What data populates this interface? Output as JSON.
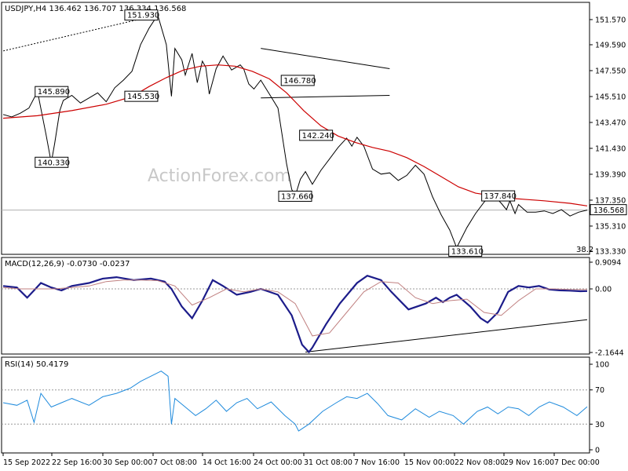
{
  "watermark": "ActionForex.com",
  "chart_data": [
    {
      "type": "line",
      "panel": "price",
      "title": "USDJPY,H4  136.462 136.707 136.334 136.568",
      "ylim": [
        133.33,
        152.0
      ],
      "yticks": [
        "151.570",
        "149.590",
        "147.550",
        "145.510",
        "143.470",
        "141.430",
        "139.390",
        "137.350",
        "135.310",
        "133.330"
      ],
      "last_price_label": "136.568",
      "corner_text": "38.2",
      "series": [
        {
          "color": "#000000",
          "x": [
            0,
            5,
            10,
            15,
            20,
            25,
            28,
            30,
            33,
            35,
            40,
            45,
            50,
            55,
            60,
            65,
            70,
            75,
            80,
            85,
            90,
            95,
            98,
            100,
            104,
            106,
            110,
            113,
            116,
            118,
            120,
            124,
            128,
            133,
            138,
            140,
            143,
            146,
            150,
            155,
            160,
            165,
            168,
            170,
            173,
            176,
            180,
            185,
            190,
            195,
            200,
            203,
            206,
            210,
            215,
            220,
            225,
            230,
            235,
            240,
            245,
            250,
            255,
            260,
            264,
            270,
            275,
            280,
            285,
            290,
            293,
            295,
            298,
            300,
            305,
            310,
            315,
            320,
            325,
            330,
            335,
            340
          ],
          "y": [
            144.1,
            143.9,
            144.2,
            144.6,
            145.9,
            142.5,
            140.3,
            141.8,
            144.4,
            145.2,
            145.6,
            145.0,
            145.4,
            145.8,
            145.1,
            146.2,
            146.8,
            147.5,
            149.6,
            150.9,
            151.93,
            149.6,
            145.53,
            149.3,
            148.4,
            147.2,
            148.9,
            146.6,
            148.3,
            147.8,
            145.7,
            147.7,
            148.7,
            147.6,
            148.0,
            147.7,
            146.5,
            146.1,
            146.8,
            145.7,
            144.6,
            140.2,
            138.2,
            137.66,
            139.0,
            139.6,
            138.6,
            139.7,
            140.6,
            141.5,
            142.24,
            141.6,
            142.3,
            141.6,
            139.8,
            139.4,
            139.5,
            138.9,
            139.3,
            140.1,
            139.4,
            137.6,
            136.2,
            135.0,
            133.61,
            135.2,
            136.3,
            137.2,
            137.84,
            137.1,
            136.6,
            137.3,
            136.3,
            137.0,
            136.4,
            136.4,
            136.5,
            136.3,
            136.6,
            136.1,
            136.4,
            136.568
          ]
        },
        {
          "color": "#cc0000",
          "x": [
            0,
            20,
            40,
            60,
            75,
            85,
            95,
            105,
            115,
            125,
            135,
            145,
            155,
            165,
            175,
            185,
            195,
            205,
            215,
            225,
            235,
            245,
            255,
            265,
            275,
            285,
            295,
            305,
            315,
            330,
            340
          ],
          "y": [
            143.8,
            144.0,
            144.4,
            144.9,
            145.5,
            146.3,
            147.0,
            147.6,
            147.9,
            148.0,
            147.9,
            147.5,
            146.9,
            145.8,
            144.4,
            143.2,
            142.4,
            141.9,
            141.5,
            141.2,
            140.7,
            140.0,
            139.2,
            138.4,
            137.9,
            137.7,
            137.5,
            137.4,
            137.3,
            137.1,
            136.9
          ]
        }
      ],
      "annotations": [
        "151.930",
        "145.890",
        "140.330",
        "145.530",
        "146.780",
        "142.240",
        "137.660",
        "137.840",
        "133.610"
      ]
    },
    {
      "type": "line",
      "panel": "macd",
      "title": "MACD(12,26,9) -0.0730 -0.0237",
      "ylim": [
        -2.1644,
        0.9094
      ],
      "yticks": [
        "0.9094",
        "0.00",
        "-2.1644"
      ],
      "series": [
        {
          "color": "#1c1c8a",
          "x": [
            0,
            8,
            14,
            18,
            22,
            28,
            34,
            40,
            50,
            58,
            66,
            76,
            86,
            94,
            98,
            100,
            104,
            110,
            116,
            122,
            128,
            136,
            144,
            150,
            160,
            168,
            174,
            178,
            180,
            188,
            196,
            206,
            212,
            220,
            226,
            236,
            246,
            252,
            256,
            260,
            264,
            272,
            278,
            282,
            288,
            294,
            300,
            306,
            312,
            318,
            324,
            330,
            336,
            340
          ],
          "y": [
            0.1,
            0.05,
            -0.3,
            -0.05,
            0.2,
            0.05,
            -0.05,
            0.1,
            0.2,
            0.35,
            0.4,
            0.3,
            0.35,
            0.25,
            0.0,
            -0.2,
            -0.6,
            -1.0,
            -0.4,
            0.3,
            0.1,
            -0.2,
            -0.1,
            0.0,
            -0.2,
            -0.9,
            -1.9,
            -2.15,
            -2.0,
            -1.2,
            -0.5,
            0.2,
            0.45,
            0.3,
            -0.1,
            -0.7,
            -0.5,
            -0.3,
            -0.45,
            -0.3,
            -0.2,
            -0.6,
            -1.0,
            -1.15,
            -0.8,
            -0.1,
            0.1,
            0.05,
            0.1,
            -0.02,
            -0.05,
            -0.06,
            -0.08,
            -0.073
          ]
        },
        {
          "color": "#c08080",
          "x": [
            0,
            10,
            20,
            30,
            40,
            50,
            60,
            70,
            80,
            90,
            100,
            110,
            120,
            130,
            140,
            150,
            160,
            170,
            180,
            190,
            200,
            210,
            220,
            230,
            240,
            250,
            260,
            270,
            280,
            290,
            300,
            310,
            320,
            330,
            340
          ],
          "y": [
            0.05,
            0.0,
            0.0,
            0.0,
            0.05,
            0.1,
            0.25,
            0.3,
            0.3,
            0.28,
            0.1,
            -0.55,
            -0.3,
            0.0,
            -0.1,
            0.0,
            -0.1,
            -0.5,
            -1.6,
            -1.5,
            -0.8,
            -0.1,
            0.25,
            0.2,
            -0.3,
            -0.5,
            -0.4,
            -0.35,
            -0.8,
            -0.9,
            -0.4,
            0.0,
            0.0,
            -0.02,
            -0.024
          ]
        }
      ],
      "trendline": {
        "x": [
          176,
          340
        ],
        "y": [
          -2.15,
          -1.05
        ]
      }
    },
    {
      "type": "line",
      "panel": "rsi",
      "title": "RSI(14) 50.4179",
      "ylim": [
        0,
        100
      ],
      "yticks": [
        "100",
        "70",
        "30",
        "0"
      ],
      "levels": [
        70,
        30
      ],
      "series": [
        {
          "color": "#1e8adc",
          "x": [
            0,
            8,
            14,
            18,
            22,
            28,
            34,
            40,
            50,
            58,
            66,
            74,
            80,
            88,
            92,
            96,
            98,
            100,
            106,
            112,
            118,
            124,
            130,
            136,
            142,
            148,
            156,
            164,
            170,
            172,
            178,
            186,
            194,
            200,
            206,
            212,
            218,
            224,
            232,
            240,
            248,
            254,
            262,
            268,
            276,
            282,
            288,
            294,
            300,
            306,
            312,
            318,
            326,
            334,
            340
          ],
          "y": [
            55,
            52,
            58,
            32,
            66,
            50,
            55,
            60,
            52,
            62,
            66,
            72,
            80,
            88,
            92,
            86,
            30,
            60,
            50,
            40,
            48,
            58,
            45,
            55,
            60,
            48,
            56,
            40,
            30,
            22,
            30,
            45,
            55,
            62,
            60,
            66,
            54,
            40,
            35,
            48,
            38,
            45,
            40,
            30,
            45,
            50,
            42,
            50,
            48,
            40,
            50,
            56,
            50,
            40,
            50.4
          ]
        }
      ]
    }
  ],
  "xaxis": {
    "labels": [
      "15 Sep 2022",
      "22 Sep 16:00",
      "30 Sep 00:00",
      "7 Oct 08:00",
      "14 Oct 16:00",
      "24 Oct 00:00",
      "31 Oct 08:00",
      "7 Nov 16:00",
      "15 Nov 00:00",
      "22 Nov 08:00",
      "29 Nov 16:00",
      "7 Dec 00:00"
    ]
  },
  "price_trendlines": [
    {
      "x": [
        90,
        0
      ],
      "y": [
        151.93,
        149.1
      ],
      "style": "dotted"
    },
    {
      "x": [
        150,
        225
      ],
      "y": [
        149.3,
        147.7
      ],
      "style": "solid"
    },
    {
      "x": [
        150,
        225
      ],
      "y": [
        145.4,
        145.6
      ],
      "style": "solid"
    }
  ]
}
